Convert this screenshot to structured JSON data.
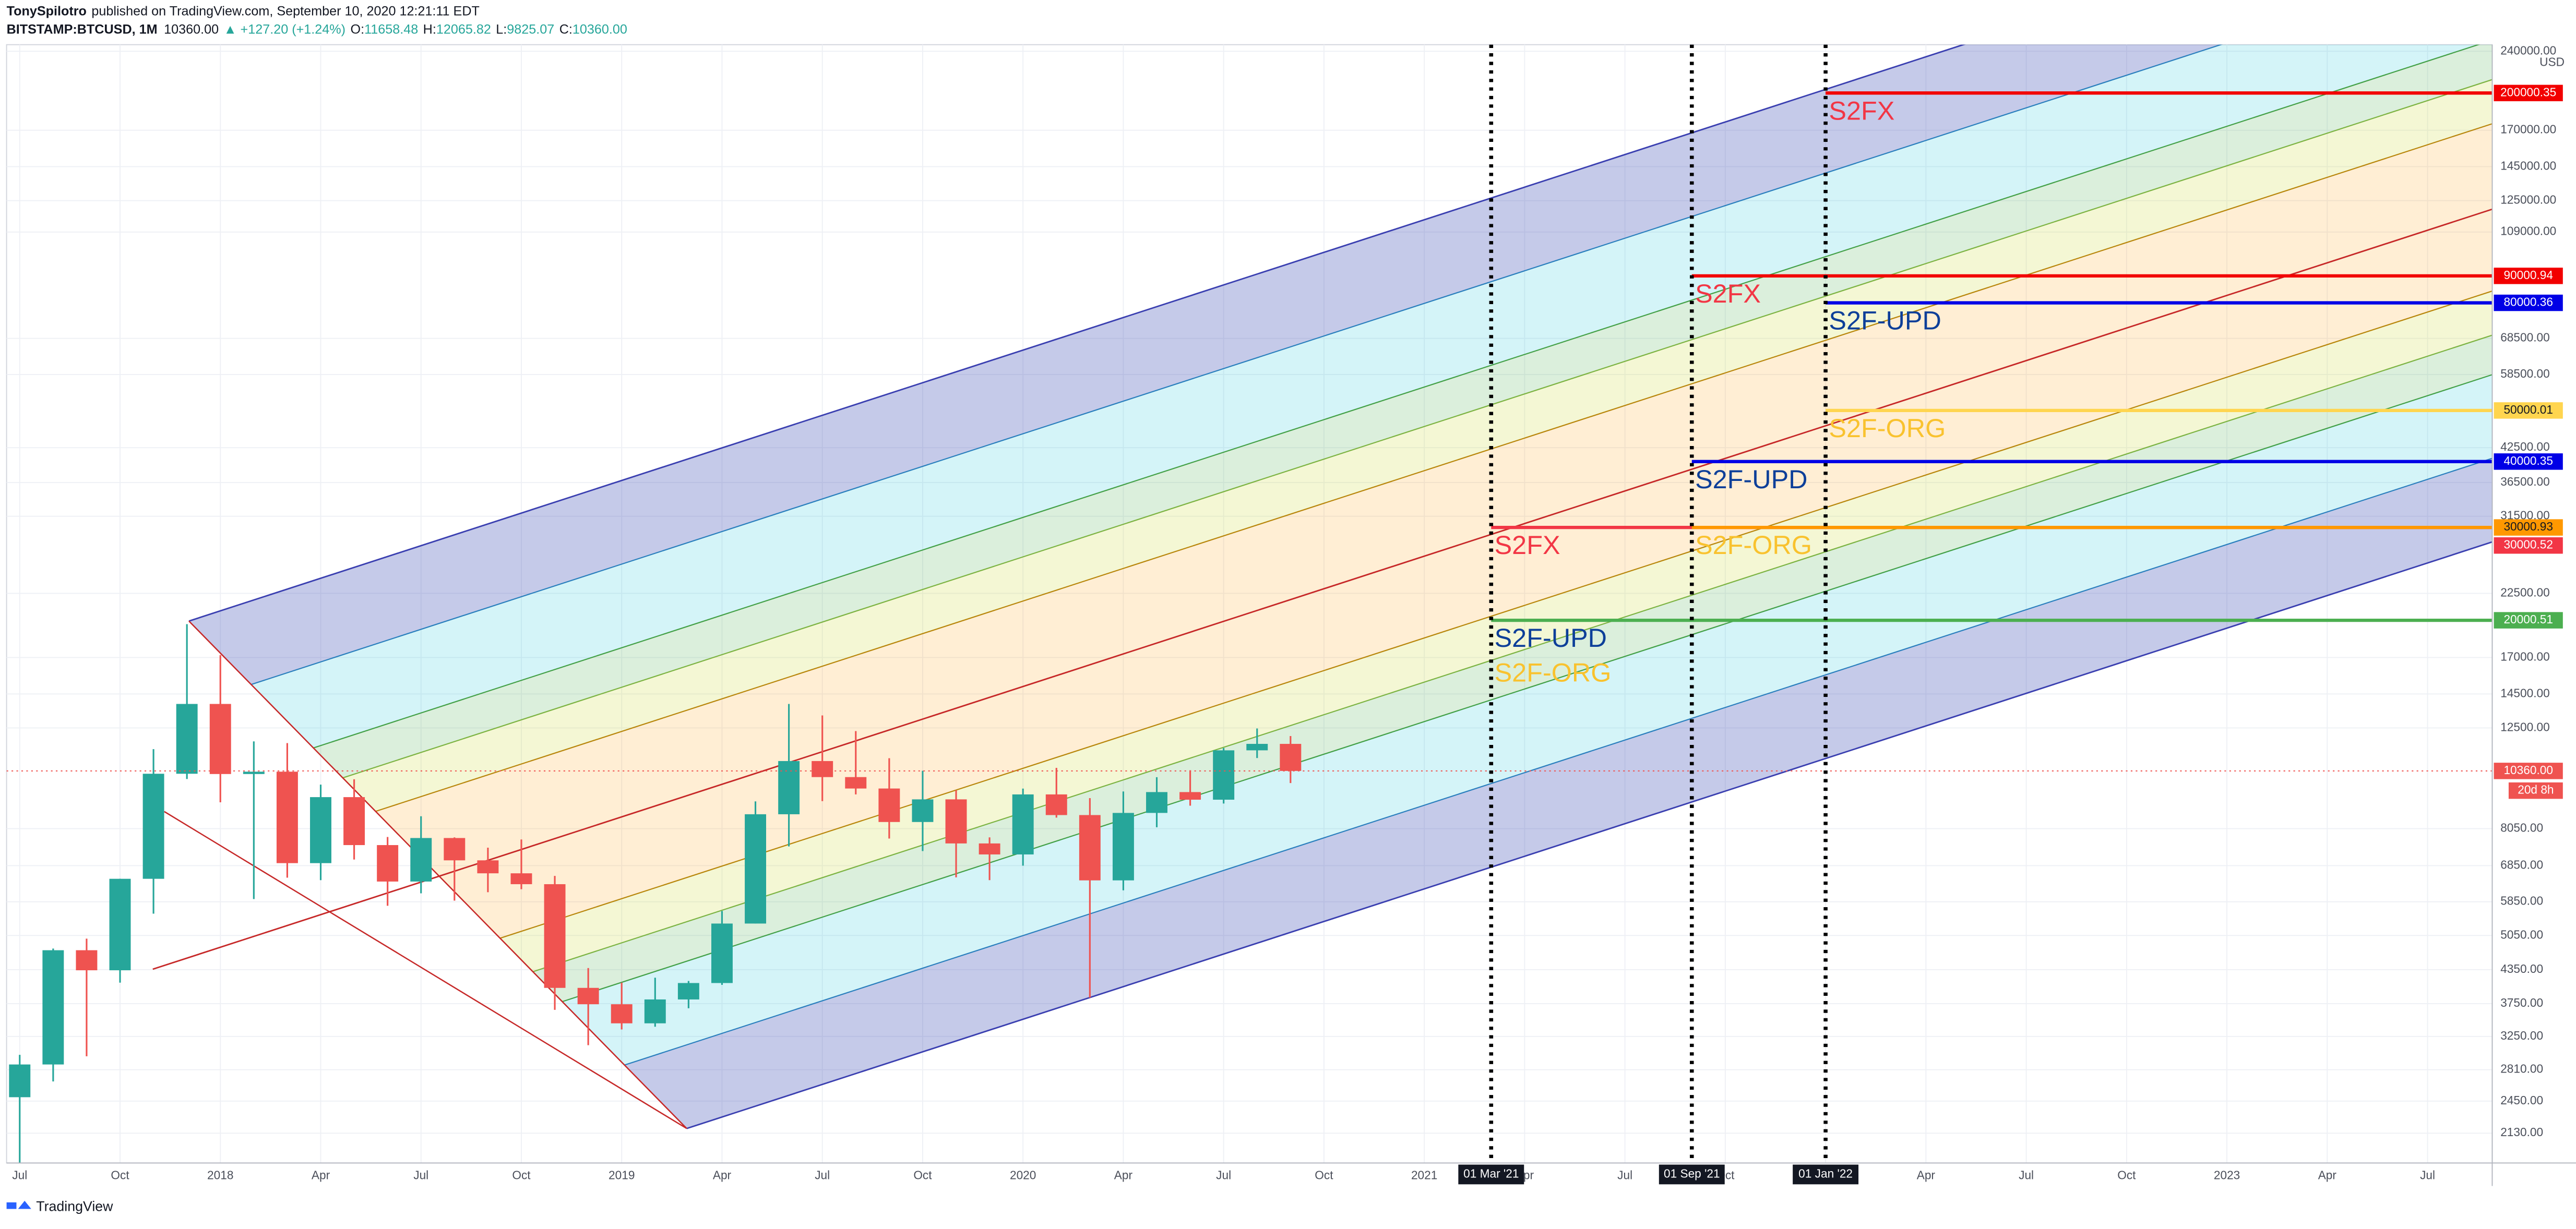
{
  "header": {
    "author": "TonySpilotro",
    "published": "published on TradingView.com, September 10, 2020 12:21:11 EDT",
    "symbol": "BITSTAMP:BTCUSD, 1M",
    "price": "10360.00",
    "change": "▲ +127.20 (+1.24%)",
    "ohlc": [
      {
        "label": "O:",
        "value": "11658.48"
      },
      {
        "label": "H:",
        "value": "12065.82"
      },
      {
        "label": "L:",
        "value": "9825.07"
      },
      {
        "label": "C:",
        "value": "10360.00"
      }
    ]
  },
  "footer": {
    "brand": "TradingView"
  },
  "chart_data": {
    "type": "candlestick",
    "x": [
      "2017-07",
      "2017-08",
      "2017-09",
      "2017-10",
      "2017-11",
      "2017-12",
      "2018-01",
      "2018-02",
      "2018-03",
      "2018-04",
      "2018-05",
      "2018-06",
      "2018-07",
      "2018-08",
      "2018-09",
      "2018-10",
      "2018-11",
      "2018-12",
      "2019-01",
      "2019-02",
      "2019-03",
      "2019-04",
      "2019-05",
      "2019-06",
      "2019-07",
      "2019-08",
      "2019-09",
      "2019-10",
      "2019-11",
      "2019-12",
      "2020-01",
      "2020-02",
      "2020-03",
      "2020-04",
      "2020-05",
      "2020-06",
      "2020-07",
      "2020-08",
      "2020-09"
    ],
    "open": [
      2492,
      2875,
      4735,
      4338,
      6468,
      10233,
      13880,
      10221,
      10326,
      6926,
      9240,
      7494,
      6391,
      7729,
      7011,
      6625,
      6318,
      4017,
      3740,
      3441,
      3819,
      4103,
      5320,
      8574,
      10817,
      10085,
      9594,
      8289,
      9150,
      7548,
      7194,
      9350,
      8544,
      6424,
      8624,
      9446,
      9137,
      11335,
      11658.48
    ],
    "high": [
      2999,
      4770,
      4980,
      6470,
      11395,
      19666,
      17176,
      11786,
      11700,
      9759,
      9990,
      7764,
      8500,
      7750,
      7410,
      7680,
      6550,
      4380,
      4110,
      4200,
      4140,
      5620,
      9070,
      13880,
      13200,
      12330,
      10950,
      10370,
      9520,
      7750,
      9590,
      10500,
      9200,
      9470,
      10080,
      10390,
      11450,
      12470,
      12065.82
    ],
    "low": [
      1830,
      2670,
      2980,
      4110,
      5555,
      10000,
      9035,
      5920,
      6500,
      6430,
      7035,
      5750,
      6070,
      5880,
      6100,
      6180,
      3650,
      3128,
      3350,
      3390,
      3675,
      4070,
      5320,
      7450,
      9080,
      9350,
      7710,
      7300,
      6510,
      6430,
      6850,
      8450,
      3850,
      6150,
      8100,
      8900,
      8985,
      10960,
      9825.07
    ],
    "close": [
      2875,
      4735,
      4338,
      6468,
      10233,
      13880,
      10221,
      10326,
      6926,
      9240,
      7494,
      6391,
      7729,
      7011,
      6625,
      6318,
      4017,
      3740,
      3441,
      3819,
      4103,
      5320,
      8574,
      10817,
      10085,
      9594,
      8289,
      9150,
      7548,
      7194,
      9350,
      8544,
      6424,
      8624,
      9446,
      9137,
      11335,
      11658.48,
      10360
    ],
    "up_color": "#26a69a",
    "down_color": "#ef5350",
    "xlim": [
      "2017-07",
      "2023-08"
    ],
    "xticks": [
      {
        "value": "2017-07",
        "label": "Jul"
      },
      {
        "value": "2017-10",
        "label": "Oct"
      },
      {
        "value": "2018-01",
        "label": "2018"
      },
      {
        "value": "2018-04",
        "label": "Apr"
      },
      {
        "value": "2018-07",
        "label": "Jul"
      },
      {
        "value": "2018-10",
        "label": "Oct"
      },
      {
        "value": "2019-01",
        "label": "2019"
      },
      {
        "value": "2019-04",
        "label": "Apr"
      },
      {
        "value": "2019-07",
        "label": "Jul"
      },
      {
        "value": "2019-10",
        "label": "Oct"
      },
      {
        "value": "2020-01",
        "label": "2020"
      },
      {
        "value": "2020-04",
        "label": "Apr"
      },
      {
        "value": "2020-07",
        "label": "Jul"
      },
      {
        "value": "2020-10",
        "label": "Oct"
      },
      {
        "value": "2021-01",
        "label": "2021"
      },
      {
        "value": "2021-04",
        "label": "Apr"
      },
      {
        "value": "2021-07",
        "label": "Jul"
      },
      {
        "value": "2021-10",
        "label": "Oct"
      },
      {
        "value": "2022-01",
        "label": "2022"
      },
      {
        "value": "2022-04",
        "label": "Apr"
      },
      {
        "value": "2022-07",
        "label": "Jul"
      },
      {
        "value": "2022-10",
        "label": "Oct"
      },
      {
        "value": "2023-01",
        "label": "2023"
      },
      {
        "value": "2023-04",
        "label": "Apr"
      },
      {
        "value": "2023-07",
        "label": "Jul"
      }
    ],
    "ylim": [
      1870,
      247000
    ],
    "log_scale": true,
    "grid": true,
    "yticks": [
      {
        "value": 240000,
        "label": "240000.00"
      },
      {
        "value": 170000,
        "label": "170000.00"
      },
      {
        "value": 145000,
        "label": "145000.00"
      },
      {
        "value": 125000,
        "label": "125000.00"
      },
      {
        "value": 109000,
        "label": "109000.00"
      },
      {
        "value": 68500,
        "label": "68500.00"
      },
      {
        "value": 58500,
        "label": "58500.00"
      },
      {
        "value": 42500,
        "label": "42500.00"
      },
      {
        "value": 36500,
        "label": "36500.00"
      },
      {
        "value": 31500,
        "label": "31500.00"
      },
      {
        "value": 22500,
        "label": "22500.00"
      },
      {
        "value": 17000,
        "label": "17000.00"
      },
      {
        "value": 14500,
        "label": "14500.00"
      },
      {
        "value": 12500,
        "label": "12500.00"
      },
      {
        "value": 8050,
        "label": "8050.00"
      },
      {
        "value": 6850,
        "label": "6850.00"
      },
      {
        "value": 5850,
        "label": "5850.00"
      },
      {
        "value": 5050,
        "label": "5050.00"
      },
      {
        "value": 4350,
        "label": "4350.00"
      },
      {
        "value": 3750,
        "label": "3750.00"
      },
      {
        "value": 3250,
        "label": "3250.00"
      },
      {
        "value": 2810,
        "label": "2810.00"
      },
      {
        "value": 2450,
        "label": "2450.00"
      },
      {
        "value": 2130,
        "label": "2130.00"
      }
    ],
    "currency": "USD",
    "last_price": {
      "value": 10360,
      "label": "10360.00",
      "countdown": "20d 8h",
      "color": "#ef5350"
    },
    "levels": [
      {
        "x": "2021-03",
        "value": 30000.52,
        "color": "#f23645",
        "labels": [
          {
            "text": "S2FX",
            "color": "#f23645"
          }
        ]
      },
      {
        "x": "2021-03",
        "value": 20000.51,
        "color": "#4caf50",
        "labels": [
          {
            "text": "S2F-UPD",
            "color": "#0d3f99"
          },
          {
            "text": "S2F-ORG",
            "color": "#f9c22e"
          }
        ]
      },
      {
        "x": "2021-09",
        "value": 90000.94,
        "color": "#f20000",
        "labels": [
          {
            "text": "S2FX",
            "color": "#f23645"
          }
        ]
      },
      {
        "x": "2021-09",
        "value": 40000.35,
        "color": "#0000e6",
        "labels": [
          {
            "text": "S2F-UPD",
            "color": "#0d3f99"
          }
        ]
      },
      {
        "x": "2021-09",
        "value": 30000.93,
        "color": "#ff9800",
        "labels": [
          {
            "text": "S2F-ORG",
            "color": "#f9c22e"
          }
        ]
      },
      {
        "x": "2022-01",
        "value": 200000.35,
        "color": "#f20000",
        "labels": [
          {
            "text": "S2FX",
            "color": "#f23645"
          }
        ]
      },
      {
        "x": "2022-01",
        "value": 80000.36,
        "color": "#0000e6",
        "labels": [
          {
            "text": "S2F-UPD",
            "color": "#0d3f99"
          }
        ]
      },
      {
        "x": "2022-01",
        "value": 50000.01,
        "color": "#ffd54f",
        "labels": [
          {
            "text": "S2F-ORG",
            "color": "#f9c22e"
          }
        ]
      }
    ],
    "date_markers": [
      {
        "x": "2021-03",
        "label": "01 Mar '21"
      },
      {
        "x": "2021-09",
        "label": "01 Sep '21"
      },
      {
        "x": "2022-01",
        "label": "01 Jan '22"
      }
    ]
  }
}
